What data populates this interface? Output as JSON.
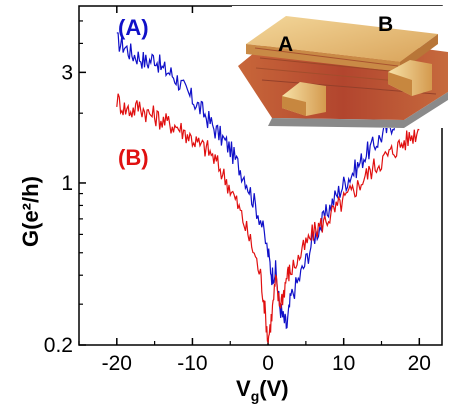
{
  "chart_data": {
    "type": "line",
    "xlabel_main": "V",
    "xlabel_sub": "g",
    "xlabel_unit": "(V)",
    "ylabel_main": "G",
    "ylabel_unit": "(e²/h)",
    "xlim": [
      -25,
      23
    ],
    "ylim": [
      0.2,
      5.8
    ],
    "yscale": "log",
    "x_ticks": [
      -20,
      -10,
      0,
      10,
      20
    ],
    "x_tick_labels": [
      "-20",
      "-10",
      "0",
      "10",
      "20"
    ],
    "y_ticks": [
      0.2,
      1,
      3
    ],
    "y_tick_labels": [
      "0.2",
      "1",
      "3"
    ],
    "grid": false,
    "series": [
      {
        "name": "(A)",
        "color": "#1010c8",
        "x": [
          -20,
          -19,
          -18,
          -17,
          -16,
          -15,
          -14,
          -13,
          -12,
          -11,
          -10,
          -9,
          -8,
          -7,
          -6,
          -5,
          -4,
          -3,
          -2,
          -1,
          0,
          0.5,
          1,
          1.5,
          2,
          2.5,
          3,
          4,
          5,
          6,
          7,
          8,
          9,
          10,
          11,
          12,
          13,
          14,
          15,
          16,
          17,
          18
        ],
        "y": [
          4.1,
          3.9,
          3.6,
          3.5,
          3.3,
          3.5,
          3.1,
          3.0,
          2.8,
          2.5,
          2.3,
          2.1,
          1.9,
          1.7,
          1.55,
          1.4,
          1.2,
          1.05,
          0.85,
          0.7,
          0.5,
          0.4,
          0.42,
          0.3,
          0.26,
          0.24,
          0.32,
          0.38,
          0.46,
          0.58,
          0.66,
          0.77,
          0.88,
          0.99,
          1.09,
          1.2,
          1.35,
          1.45,
          1.6,
          1.75,
          1.9,
          2.05
        ]
      },
      {
        "name": "(B)",
        "color": "#e01010",
        "x": [
          -20,
          -19,
          -18,
          -17,
          -16,
          -15,
          -14,
          -13,
          -12,
          -11,
          -10,
          -9,
          -8,
          -7,
          -6,
          -5,
          -4,
          -3,
          -2,
          -1,
          -0.5,
          0,
          0.5,
          1,
          1.5,
          2,
          2.5,
          3,
          4,
          5,
          6,
          7,
          8,
          9,
          10,
          11,
          12,
          13,
          14,
          15,
          16,
          17,
          18,
          19,
          20
        ],
        "y": [
          2.3,
          2.1,
          2.05,
          2.15,
          2.0,
          1.95,
          1.85,
          1.8,
          1.75,
          1.65,
          1.55,
          1.45,
          1.4,
          1.25,
          1.1,
          0.95,
          0.8,
          0.65,
          0.52,
          0.4,
          0.3,
          0.21,
          0.27,
          0.38,
          0.3,
          0.33,
          0.4,
          0.42,
          0.47,
          0.54,
          0.61,
          0.66,
          0.71,
          0.77,
          0.84,
          0.91,
          0.98,
          1.08,
          1.17,
          1.25,
          1.33,
          1.42,
          1.5,
          1.6,
          1.7
        ]
      }
    ],
    "inset": {
      "type": "image",
      "labels": [
        "A",
        "B"
      ]
    }
  }
}
